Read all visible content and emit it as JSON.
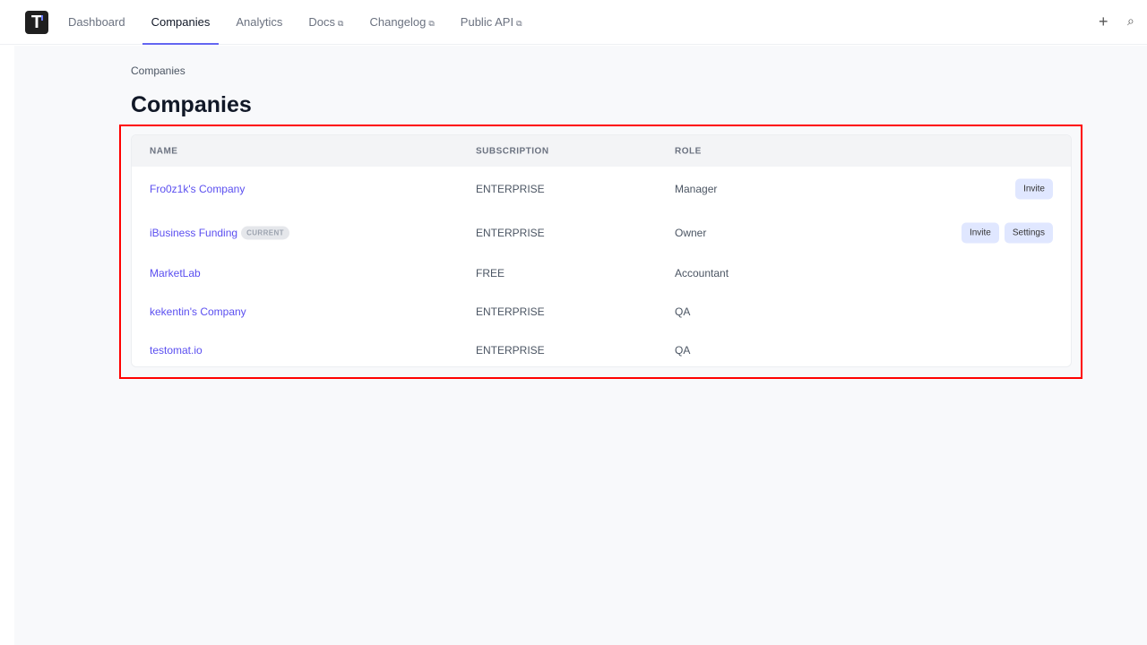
{
  "nav": {
    "logo": "T",
    "tabs": [
      {
        "label": "Dashboard",
        "external": false
      },
      {
        "label": "Companies",
        "external": false,
        "active": true
      },
      {
        "label": "Analytics",
        "external": false
      },
      {
        "label": "Docs",
        "external": true
      },
      {
        "label": "Changelog",
        "external": true
      },
      {
        "label": "Public API",
        "external": true
      }
    ],
    "plus": "+",
    "feed_icon": "feed-icon"
  },
  "breadcrumb": "Companies",
  "title": "Companies",
  "table": {
    "headers": [
      "NAME",
      "SUBSCRIPTION",
      "ROLE"
    ],
    "rows": [
      {
        "name": "Fro0z1k's Company",
        "subscription": "ENTERPRISE",
        "role": "Manager",
        "badge": null,
        "actions": [
          "Invite"
        ]
      },
      {
        "name": "iBusiness Funding",
        "subscription": "ENTERPRISE",
        "role": "Owner",
        "badge": "CURRENT",
        "actions": [
          "Invite",
          "Settings"
        ]
      },
      {
        "name": "MarketLab",
        "subscription": "FREE",
        "role": "Accountant",
        "badge": null,
        "actions": []
      },
      {
        "name": "kekentin's Company",
        "subscription": "ENTERPRISE",
        "role": "QA",
        "badge": null,
        "actions": []
      },
      {
        "name": "testomat.io",
        "subscription": "ENTERPRISE",
        "role": "QA",
        "badge": null,
        "actions": []
      }
    ]
  },
  "colors": {
    "accent": "#6366f1",
    "link": "#5b4ff0",
    "button_bg": "#e0e7ff",
    "highlight": "#ff0000"
  }
}
